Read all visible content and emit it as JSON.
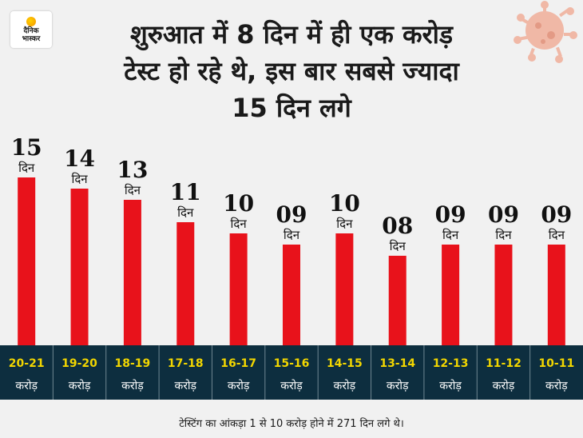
{
  "logo": {
    "line1": "दैनिक",
    "line2": "भास्कर"
  },
  "title": {
    "line1": "शुरुआत में 8 दिन में ही एक करोड़",
    "line2": "टेस्ट हो रहे थे, इस बार सबसे ज्यादा",
    "line3": "15 दिन लगे"
  },
  "chart_data": {
    "type": "bar",
    "categories": [
      "20-21",
      "19-20",
      "18-19",
      "17-18",
      "16-17",
      "15-16",
      "14-15",
      "13-14",
      "12-13",
      "11-12",
      "10-11"
    ],
    "category_unit": "करोड़",
    "values": [
      15,
      14,
      13,
      11,
      10,
      9,
      10,
      8,
      9,
      9,
      9
    ],
    "value_labels": [
      "15",
      "14",
      "13",
      "11",
      "10",
      "09",
      "10",
      "08",
      "09",
      "09",
      "09"
    ],
    "value_unit": "दिन",
    "title": "",
    "xlabel": "",
    "ylabel": "",
    "ylim": [
      0,
      16
    ],
    "bar_color": "#e8121b",
    "axis_band_color": "#0d2e3f",
    "category_label_color": "#f2d600",
    "grid": false,
    "legend": "none"
  },
  "footnote": "टेस्टिंग का आंकड़ा 1 से 10 करोड़ होने में 271 दिन लगे थे।"
}
